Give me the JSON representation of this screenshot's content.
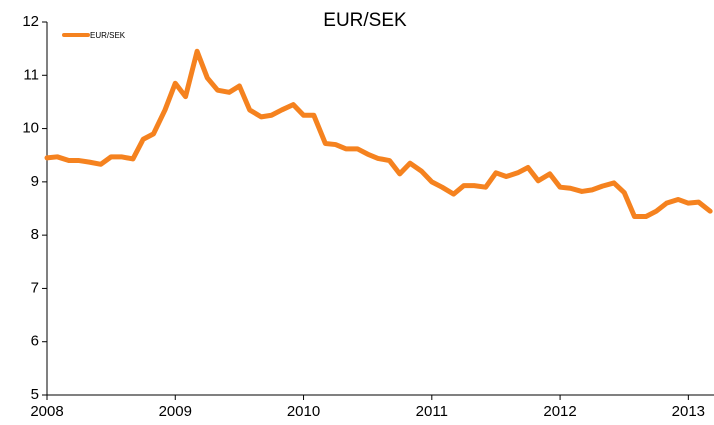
{
  "chart_data": {
    "type": "line",
    "title": "EUR/SEK",
    "x": [
      2008.0,
      2008.08,
      2008.17,
      2008.25,
      2008.33,
      2008.42,
      2008.5,
      2008.58,
      2008.67,
      2008.75,
      2008.83,
      2008.92,
      2009.0,
      2009.08,
      2009.17,
      2009.25,
      2009.33,
      2009.42,
      2009.5,
      2009.58,
      2009.67,
      2009.75,
      2009.83,
      2009.92,
      2010.0,
      2010.08,
      2010.17,
      2010.25,
      2010.33,
      2010.42,
      2010.5,
      2010.58,
      2010.67,
      2010.75,
      2010.83,
      2010.92,
      2011.0,
      2011.08,
      2011.17,
      2011.25,
      2011.33,
      2011.42,
      2011.5,
      2011.58,
      2011.67,
      2011.75,
      2011.83,
      2011.92,
      2012.0,
      2012.08,
      2012.17,
      2012.25,
      2012.33,
      2012.42,
      2012.5,
      2012.58,
      2012.67,
      2012.75,
      2012.83,
      2012.92,
      2013.0,
      2013.08,
      2013.17
    ],
    "series": [
      {
        "name": "EUR/SEK",
        "color": "#f5821f",
        "values": [
          9.45,
          9.47,
          9.4,
          9.4,
          9.37,
          9.33,
          9.47,
          9.47,
          9.43,
          9.8,
          9.9,
          10.35,
          10.85,
          10.6,
          11.45,
          10.95,
          10.72,
          10.68,
          10.8,
          10.35,
          10.22,
          10.25,
          10.35,
          10.45,
          10.25,
          10.25,
          9.72,
          9.7,
          9.62,
          9.62,
          9.52,
          9.44,
          9.4,
          9.15,
          9.35,
          9.2,
          9.0,
          8.9,
          8.77,
          8.93,
          8.93,
          8.9,
          9.17,
          9.1,
          9.17,
          9.27,
          9.02,
          9.15,
          8.9,
          8.88,
          8.82,
          8.85,
          8.92,
          8.98,
          8.8,
          8.35,
          8.35,
          8.45,
          8.6,
          8.67,
          8.6,
          8.62,
          8.45
        ]
      }
    ],
    "xlim": [
      2008,
      2013.2
    ],
    "xticks": [
      2008,
      2009,
      2010,
      2011,
      2012,
      2013
    ],
    "ylim": [
      5,
      12
    ],
    "yticks": [
      5,
      6,
      7,
      8,
      9,
      10,
      11,
      12
    ],
    "grid": false,
    "legend": "upper left"
  }
}
